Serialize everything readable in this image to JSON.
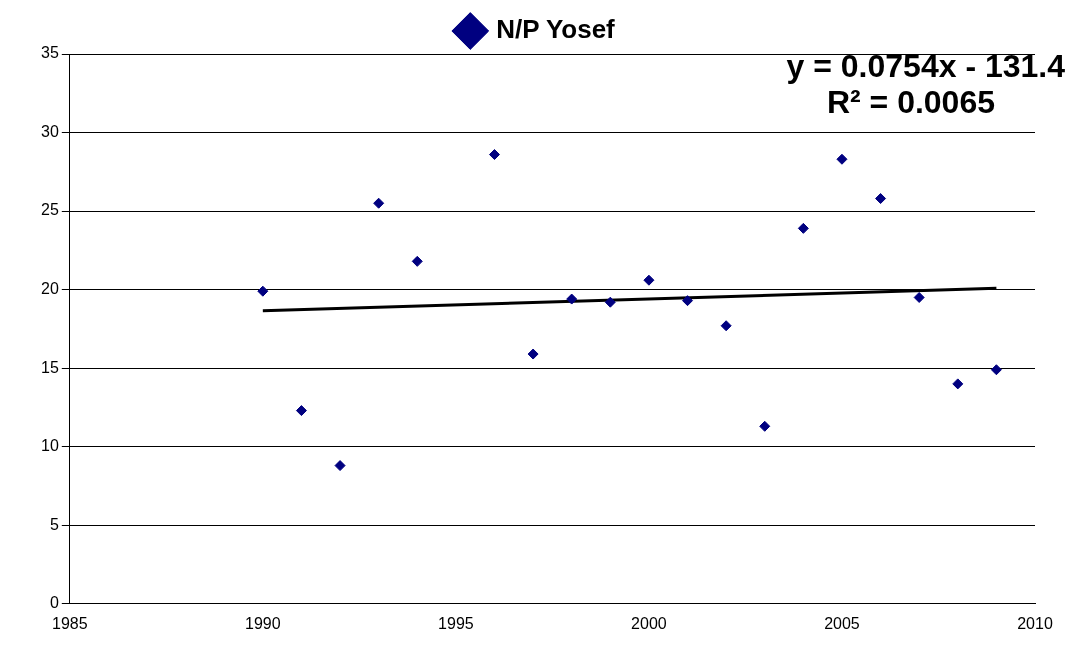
{
  "chart_data": {
    "type": "scatter",
    "x": [
      1990,
      1991,
      1992,
      1993,
      1994,
      1996,
      1997,
      1998,
      1999,
      2000,
      2001,
      2002,
      2003,
      2004,
      2005,
      2006,
      2007,
      2008,
      2009
    ],
    "series": [
      {
        "name": "N/P Yosef",
        "color": "#000080",
        "marker": "diamond",
        "values": [
          19.9,
          12.3,
          8.8,
          25.5,
          21.8,
          28.6,
          15.9,
          19.4,
          19.2,
          20.6,
          19.3,
          17.7,
          11.3,
          23.9,
          28.3,
          25.8,
          19.5,
          14.0,
          14.9
        ]
      },
      {
        "type": "line",
        "color": "#000000",
        "marker": "none",
        "x": [
          1990,
          2009
        ],
        "values": [
          18.65,
          20.08
        ]
      }
    ],
    "xlim": [
      1985,
      2010
    ],
    "xticks": [
      1985,
      1990,
      1995,
      2000,
      2005,
      2010
    ],
    "ylim": [
      0,
      35
    ],
    "yticks": [
      0,
      5,
      10,
      15,
      20,
      25,
      30,
      35
    ],
    "grid": "y",
    "legend": "top",
    "annotations": [
      "y = 0.0754x - 131.4",
      "R² = 0.0065"
    ]
  }
}
